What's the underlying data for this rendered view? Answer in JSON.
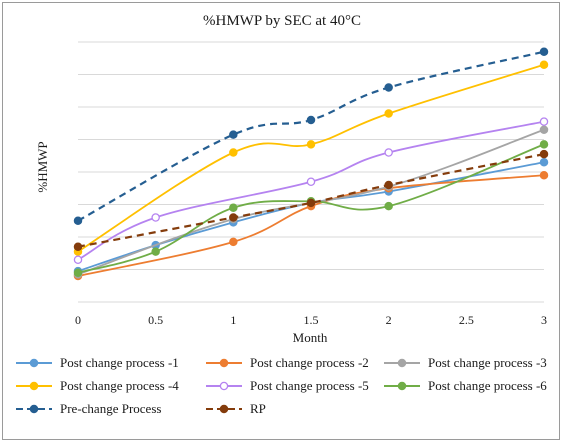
{
  "chart_data": {
    "type": "line",
    "title": "%HMWP  by SEC at 40°C",
    "xlabel": "Month",
    "ylabel": "%HMWP",
    "x": [
      0,
      0.5,
      1,
      1.5,
      2,
      3
    ],
    "x_ticks": [
      "0",
      "0.5",
      "1",
      "1.5",
      "2",
      "2.5",
      "3"
    ],
    "x_range": [
      0,
      3
    ],
    "y_range": [
      0,
      8
    ],
    "y_tick_labels_shown": false,
    "grid": "horizontal",
    "legend_position": "bottom",
    "series": [
      {
        "name": "Post change process -1",
        "color": "#5b9bd5",
        "dash": false,
        "marker": "filled",
        "values": [
          0.95,
          1.75,
          2.45,
          3.05,
          3.4,
          4.3
        ]
      },
      {
        "name": "Post change process -2",
        "color": "#ed7d31",
        "dash": false,
        "marker": "filled",
        "values": [
          0.8,
          null,
          1.85,
          2.95,
          3.5,
          3.9
        ]
      },
      {
        "name": "Post change process -3",
        "color": "#a5a5a5",
        "dash": false,
        "marker": "filled",
        "values": [
          0.85,
          null,
          2.55,
          null,
          3.55,
          5.3
        ]
      },
      {
        "name": "Post change process -4",
        "color": "#ffc000",
        "dash": false,
        "marker": "filled",
        "values": [
          1.55,
          null,
          4.6,
          4.85,
          5.8,
          7.3
        ]
      },
      {
        "name": "Post change process -5",
        "color": "#b583f0",
        "dash": false,
        "marker": "hollow",
        "values": [
          1.3,
          2.6,
          null,
          3.7,
          4.6,
          5.55
        ]
      },
      {
        "name": "Post change process -6",
        "color": "#70ad47",
        "dash": false,
        "marker": "filled",
        "values": [
          0.9,
          1.55,
          2.9,
          3.1,
          2.95,
          4.85
        ]
      },
      {
        "name": "Pre-change Process",
        "color": "#255e91",
        "dash": true,
        "marker": "filled",
        "values": [
          2.5,
          null,
          5.15,
          5.6,
          6.6,
          7.7
        ]
      },
      {
        "name": "RP",
        "color": "#843c0c",
        "dash": true,
        "marker": "filled",
        "values": [
          1.7,
          null,
          2.6,
          3.05,
          3.6,
          4.55
        ]
      }
    ]
  }
}
